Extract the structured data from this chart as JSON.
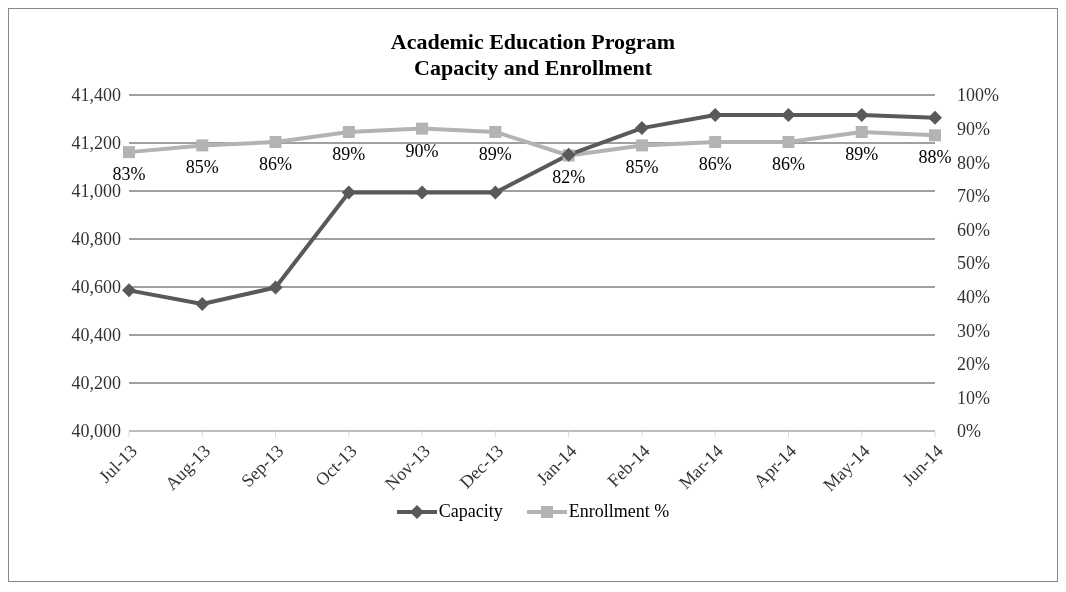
{
  "chart_data": {
    "type": "line",
    "title": "Academic Education Program",
    "subtitle": "Capacity and Enrollment",
    "categories": [
      "Jul-13",
      "Aug-13",
      "Sep-13",
      "Oct-13",
      "Nov-13",
      "Dec-13",
      "Jan-14",
      "Feb-14",
      "Mar-14",
      "Apr-14",
      "May-14",
      "Jun-14"
    ],
    "series": [
      {
        "name": "Capacity",
        "color": "#595959",
        "marker": "diamond",
        "values": [
          40586,
          40529,
          40598,
          40994,
          40994,
          40994,
          41151,
          41262,
          41317,
          41317,
          41317,
          41305
        ]
      },
      {
        "name": "Enrollment %",
        "color": "#b3b3b3",
        "marker": "square",
        "axis": "y2",
        "values": [
          83,
          85,
          86,
          89,
          90,
          89,
          82,
          85,
          86,
          86,
          89,
          88
        ],
        "value_labels": [
          "83%",
          "85%",
          "86%",
          "89%",
          "90%",
          "89%",
          "82%",
          "85%",
          "86%",
          "86%",
          "89%",
          "88%"
        ]
      }
    ],
    "ylim": [
      40000,
      41400
    ],
    "yticks": [
      {
        "value": 40000,
        "label": "40,000"
      },
      {
        "value": 40200,
        "label": "40,200"
      },
      {
        "value": 40400,
        "label": "40,400"
      },
      {
        "value": 40600,
        "label": "40,600"
      },
      {
        "value": 40800,
        "label": "40,800"
      },
      {
        "value": 41000,
        "label": "41,000"
      },
      {
        "value": 41200,
        "label": "41,200"
      },
      {
        "value": 41400,
        "label": "41,400"
      }
    ],
    "y2lim": [
      0,
      100
    ],
    "y2ticks": [
      {
        "value": 0,
        "label": "0%"
      },
      {
        "value": 10,
        "label": "10%"
      },
      {
        "value": 20,
        "label": "20%"
      },
      {
        "value": 30,
        "label": "30%"
      },
      {
        "value": 40,
        "label": "40%"
      },
      {
        "value": 50,
        "label": "50%"
      },
      {
        "value": 60,
        "label": "60%"
      },
      {
        "value": 70,
        "label": "70%"
      },
      {
        "value": 80,
        "label": "80%"
      },
      {
        "value": 90,
        "label": "90%"
      },
      {
        "value": 100,
        "label": "100%"
      }
    ],
    "grid": "y",
    "legend": "bottom",
    "line_style": "solid"
  }
}
